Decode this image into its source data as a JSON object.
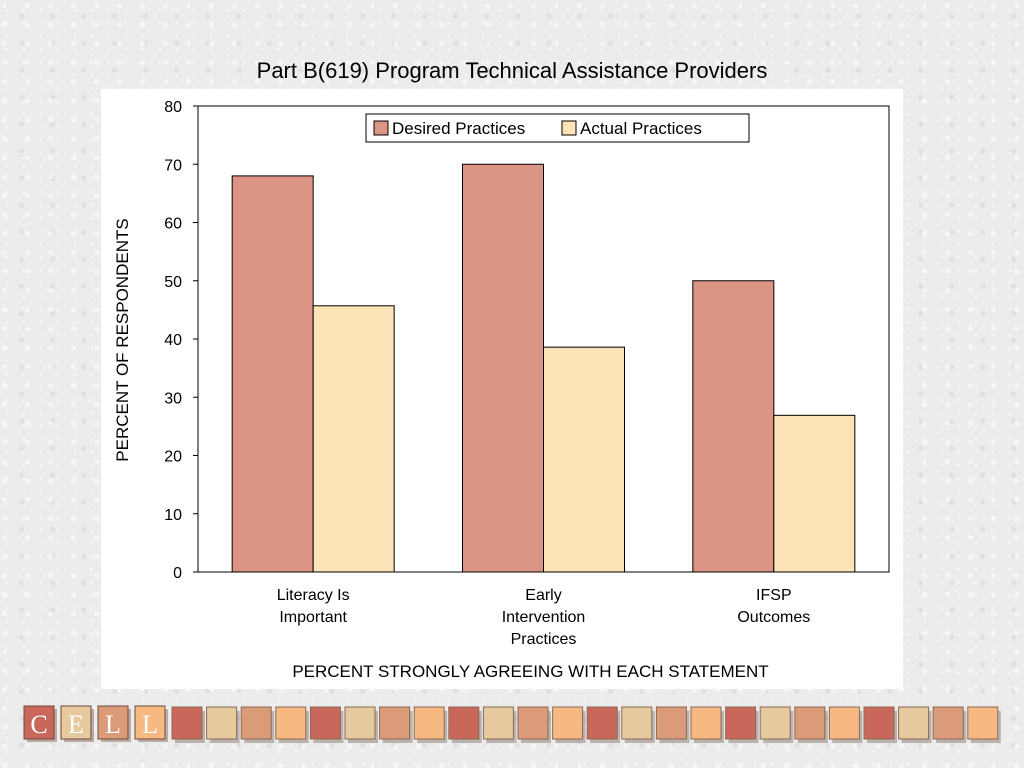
{
  "chart_data": {
    "type": "bar",
    "title": "Part B(619) Program Technical Assistance Providers",
    "xlabel": "PERCENT STRONGLY AGREEING WITH EACH STATEMENT",
    "ylabel": "PERCENT OF RESPONDENTS",
    "categories": [
      [
        "Literacy Is",
        "Important"
      ],
      [
        "Early",
        "Intervention",
        "Practices"
      ],
      [
        "IFSP",
        "Outcomes"
      ]
    ],
    "series": [
      {
        "name": "Desired Practices",
        "values": [
          68,
          70,
          50
        ],
        "color": "#dc9485"
      },
      {
        "name": "Actual Practices",
        "values": [
          45.7,
          38.6,
          26.9
        ],
        "color": "#fde3b8"
      }
    ],
    "ylim": [
      0,
      80
    ],
    "yticks": [
      0,
      10,
      20,
      30,
      40,
      50,
      60,
      70,
      80
    ],
    "grid": false,
    "legend": "top-center"
  },
  "logo": {
    "letters": [
      "C",
      "E",
      "L",
      "L"
    ],
    "tile_colors": [
      "#c9675b",
      "#e7c9a0",
      "#dc9b78",
      "#f6b982"
    ]
  }
}
